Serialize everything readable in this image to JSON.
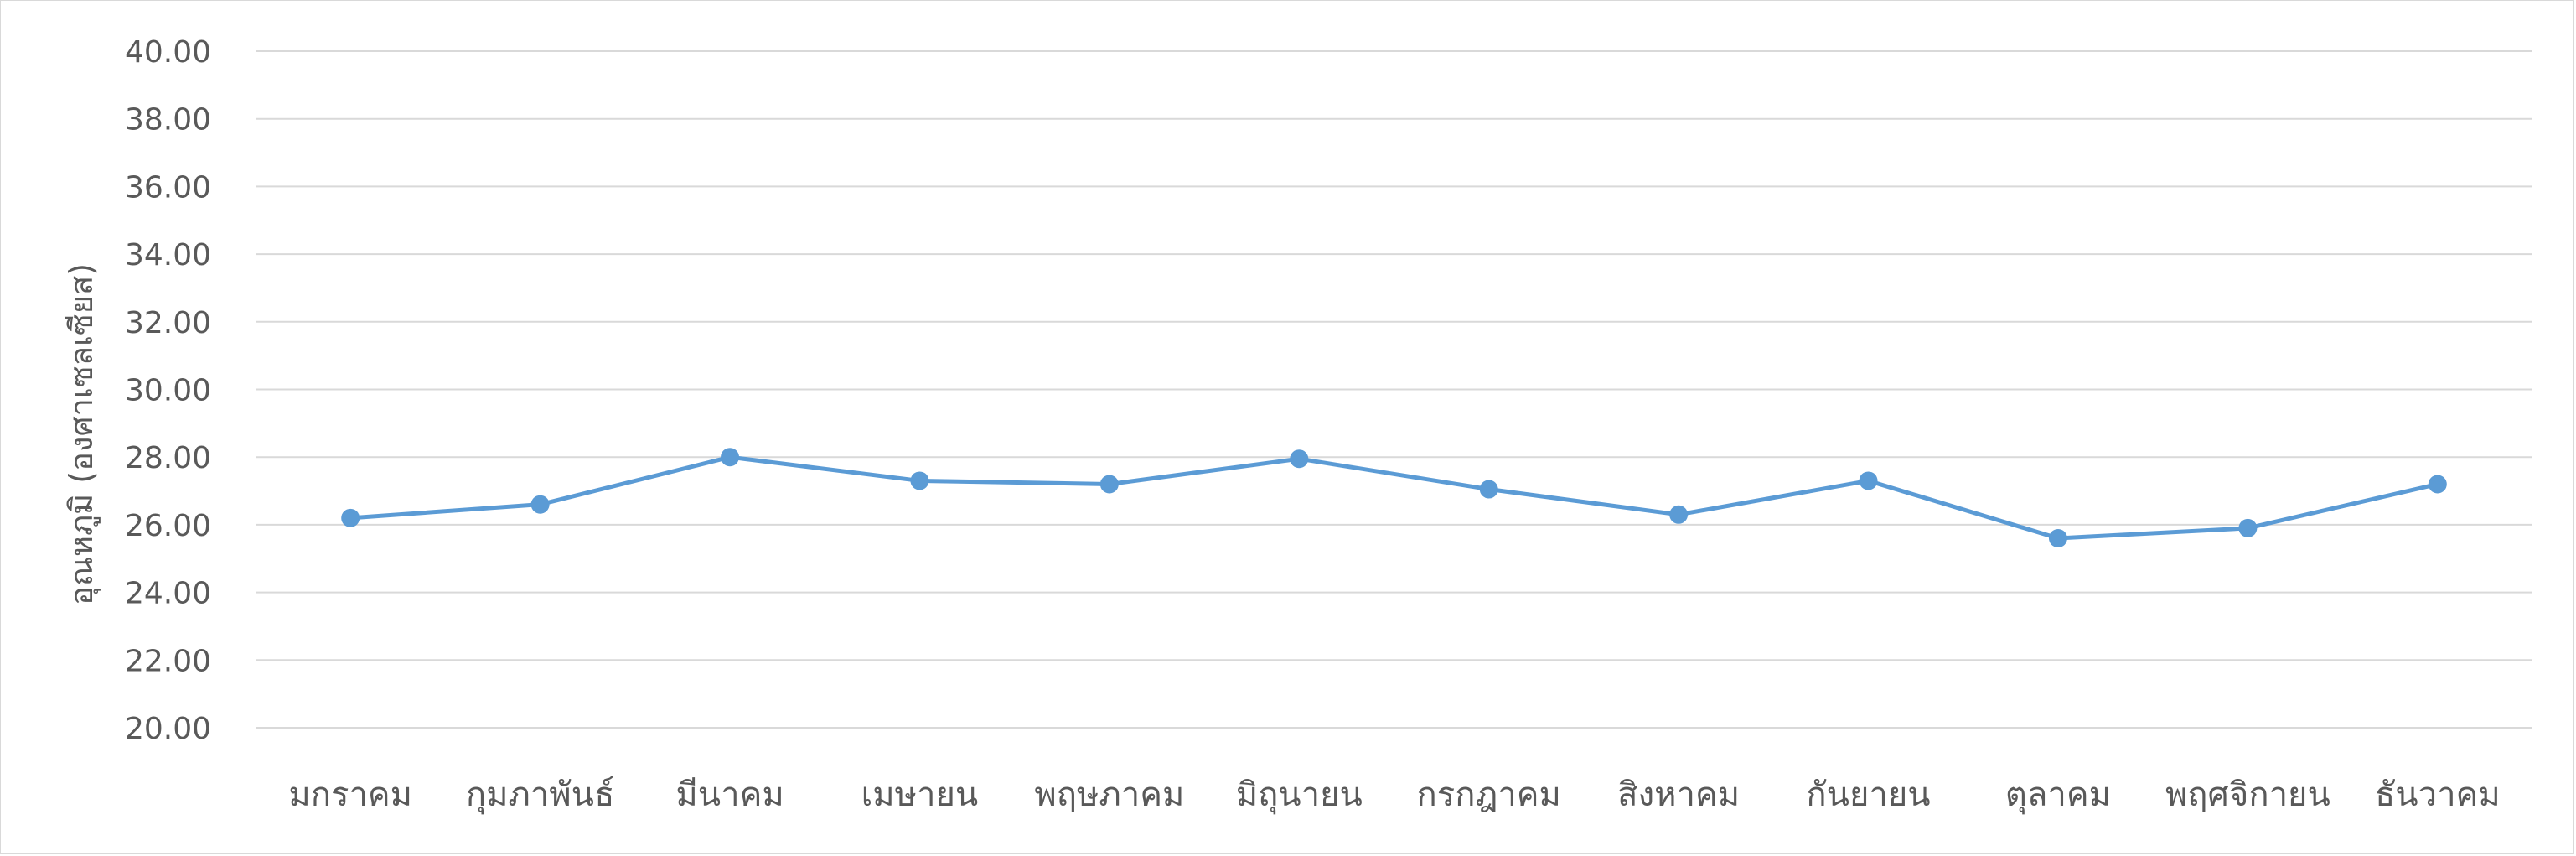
{
  "chart_data": {
    "type": "line",
    "title": "",
    "xlabel": "",
    "ylabel": "อุณหภูมิ (องศาเซลเซียส)",
    "categories": [
      "มกราคม",
      "กุมภาพันธ์",
      "มีนาคม",
      "เมษายน",
      "พฤษภาคม",
      "มิถุนายน",
      "กรกฎาคม",
      "สิงหาคม",
      "กันยายน",
      "ตุลาคม",
      "พฤศจิกายน",
      "ธันวาคม"
    ],
    "series": [
      {
        "values": [
          26.2,
          26.6,
          28.0,
          27.3,
          27.2,
          27.95,
          27.05,
          26.3,
          27.3,
          25.6,
          25.9,
          27.2
        ],
        "color": "#5b9bd5"
      }
    ],
    "ylim": [
      20,
      40
    ],
    "yticks": [
      "20.00",
      "22.00",
      "24.00",
      "26.00",
      "28.00",
      "30.00",
      "32.00",
      "34.00",
      "36.00",
      "38.00",
      "40.00"
    ],
    "grid": true,
    "legend": "none"
  }
}
